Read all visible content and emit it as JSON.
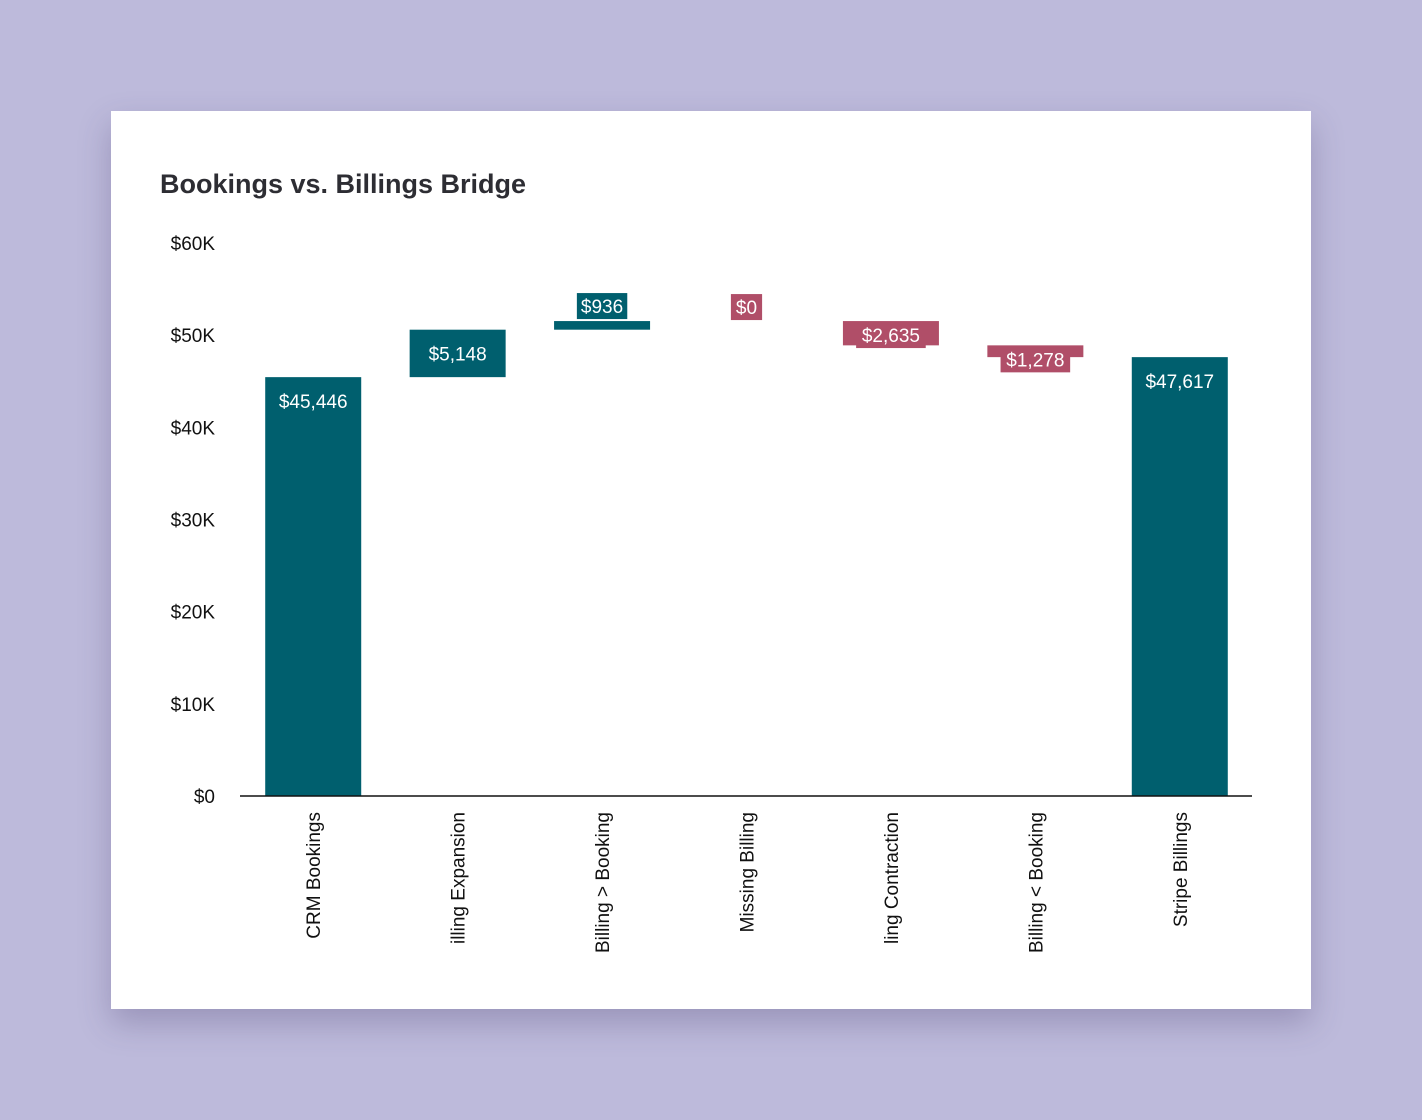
{
  "colors": {
    "page_background": "#bdbadb",
    "card_background": "#ffffff",
    "total": "#005f6e",
    "increase": "#005f6e",
    "decrease": "#b04e68",
    "axis": "#111111"
  },
  "chart_data": {
    "type": "bar",
    "subtype": "waterfall",
    "title": "Bookings vs. Billings Bridge",
    "xlabel": "",
    "ylabel": "",
    "ylim": [
      0,
      60000
    ],
    "yticks": [
      0,
      10000,
      20000,
      30000,
      40000,
      50000,
      60000
    ],
    "ytick_labels": [
      "$0",
      "$10K",
      "$20K",
      "$30K",
      "$40K",
      "$50K",
      "$60K"
    ],
    "grid": false,
    "legend": "none",
    "categories": [
      "CRM Bookings",
      "Billing Expansion",
      "Billing > Booking",
      "Missing Billing",
      "Billing Contraction",
      "Billing < Booking",
      "Stripe Billings"
    ],
    "visible_category_labels": [
      "CRM Bookings",
      "illing Expansion",
      "Billing > Booking",
      "Missing Billing",
      "ling Contraction",
      "Billing < Booking",
      "Stripe Billings"
    ],
    "bars": [
      {
        "category": "CRM Bookings",
        "kind": "total",
        "start": 0,
        "end": 45446,
        "label": "$45,446"
      },
      {
        "category": "Billing Expansion",
        "kind": "increase",
        "start": 45446,
        "end": 50594,
        "label": "$5,148"
      },
      {
        "category": "Billing > Booking",
        "kind": "increase",
        "start": 50594,
        "end": 51530,
        "label": "$936"
      },
      {
        "category": "Missing Billing",
        "kind": "decrease",
        "start": 51530,
        "end": 51530,
        "label": "$0"
      },
      {
        "category": "Billing Contraction",
        "kind": "decrease",
        "start": 51530,
        "end": 48895,
        "label": "$2,635"
      },
      {
        "category": "Billing < Booking",
        "kind": "decrease",
        "start": 48895,
        "end": 47617,
        "label": "$1,278"
      },
      {
        "category": "Stripe Billings",
        "kind": "total",
        "start": 0,
        "end": 47617,
        "label": "$47,617"
      }
    ]
  }
}
